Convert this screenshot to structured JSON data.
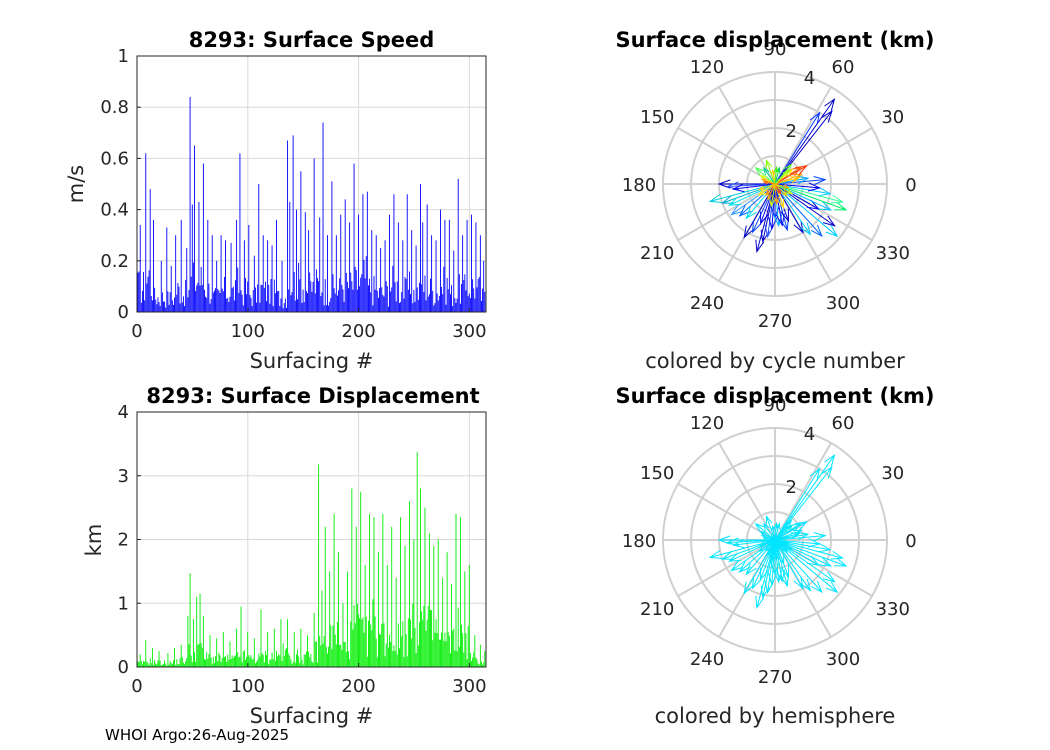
{
  "footer": "WHOI Argo:26-Aug-2025",
  "colors": {
    "speed_bars": "#0000ff",
    "displacement_bars": "#00ee00",
    "hemisphere_arrows": "#00e5ff"
  },
  "chart_data": [
    {
      "type": "bar",
      "title": "8293: Surface Speed",
      "xlabel": "Surfacing #",
      "ylabel": "m/s",
      "xlim": [
        0,
        315
      ],
      "ylim": [
        0,
        1
      ],
      "xticks": [
        "0",
        "100",
        "200",
        "300"
      ],
      "yticks": [
        "0",
        "0.2",
        "0.4",
        "0.6",
        "0.8",
        "1"
      ],
      "n_bars": 315,
      "peaks": [
        [
          3,
          0.34
        ],
        [
          8,
          0.62
        ],
        [
          12,
          0.48
        ],
        [
          15,
          0.36
        ],
        [
          22,
          0.2
        ],
        [
          27,
          0.33
        ],
        [
          31,
          0.18
        ],
        [
          35,
          0.3
        ],
        [
          40,
          0.36
        ],
        [
          45,
          0.25
        ],
        [
          48,
          0.84
        ],
        [
          50,
          0.42
        ],
        [
          52,
          0.65
        ],
        [
          56,
          0.43
        ],
        [
          60,
          0.58
        ],
        [
          64,
          0.36
        ],
        [
          68,
          0.3
        ],
        [
          72,
          0.2
        ],
        [
          76,
          0.3
        ],
        [
          80,
          0.28
        ],
        [
          85,
          0.27
        ],
        [
          90,
          0.36
        ],
        [
          93,
          0.62
        ],
        [
          97,
          0.28
        ],
        [
          101,
          0.34
        ],
        [
          106,
          0.22
        ],
        [
          110,
          0.5
        ],
        [
          114,
          0.3
        ],
        [
          118,
          0.28
        ],
        [
          122,
          0.26
        ],
        [
          126,
          0.36
        ],
        [
          131,
          0.2
        ],
        [
          136,
          0.67
        ],
        [
          138,
          0.43
        ],
        [
          141,
          0.69
        ],
        [
          144,
          0.4
        ],
        [
          148,
          0.55
        ],
        [
          152,
          0.39
        ],
        [
          155,
          0.32
        ],
        [
          160,
          0.6
        ],
        [
          165,
          0.37
        ],
        [
          168,
          0.74
        ],
        [
          172,
          0.3
        ],
        [
          176,
          0.51
        ],
        [
          180,
          0.3
        ],
        [
          184,
          0.38
        ],
        [
          188,
          0.44
        ],
        [
          192,
          0.35
        ],
        [
          196,
          0.58
        ],
        [
          200,
          0.38
        ],
        [
          204,
          0.46
        ],
        [
          208,
          0.47
        ],
        [
          212,
          0.32
        ],
        [
          216,
          0.3
        ],
        [
          220,
          0.25
        ],
        [
          224,
          0.28
        ],
        [
          228,
          0.38
        ],
        [
          232,
          0.46
        ],
        [
          236,
          0.35
        ],
        [
          240,
          0.28
        ],
        [
          244,
          0.46
        ],
        [
          248,
          0.32
        ],
        [
          252,
          0.26
        ],
        [
          256,
          0.5
        ],
        [
          258,
          0.35
        ],
        [
          262,
          0.42
        ],
        [
          266,
          0.3
        ],
        [
          270,
          0.28
        ],
        [
          274,
          0.4
        ],
        [
          278,
          0.36
        ],
        [
          282,
          0.36
        ],
        [
          286,
          0.24
        ],
        [
          290,
          0.52
        ],
        [
          294,
          0.3
        ],
        [
          298,
          0.36
        ],
        [
          302,
          0.38
        ],
        [
          306,
          0.35
        ],
        [
          310,
          0.3
        ],
        [
          313,
          0.2
        ]
      ]
    },
    {
      "type": "bar",
      "title": "8293: Surface Displacement",
      "xlabel": "Surfacing #",
      "ylabel": "km",
      "xlim": [
        0,
        315
      ],
      "ylim": [
        0,
        4
      ],
      "xticks": [
        "0",
        "100",
        "200",
        "300"
      ],
      "yticks": [
        "0",
        "1",
        "2",
        "3",
        "4"
      ],
      "n_bars": 315,
      "peaks": [
        [
          3,
          0.2
        ],
        [
          8,
          0.42
        ],
        [
          14,
          0.3
        ],
        [
          20,
          0.25
        ],
        [
          28,
          0.22
        ],
        [
          34,
          0.3
        ],
        [
          40,
          0.35
        ],
        [
          46,
          0.8
        ],
        [
          48,
          1.47
        ],
        [
          51,
          0.75
        ],
        [
          54,
          1.1
        ],
        [
          57,
          1.15
        ],
        [
          60,
          0.8
        ],
        [
          66,
          0.5
        ],
        [
          72,
          0.45
        ],
        [
          78,
          0.55
        ],
        [
          84,
          0.4
        ],
        [
          90,
          0.6
        ],
        [
          94,
          0.95
        ],
        [
          100,
          0.55
        ],
        [
          106,
          0.45
        ],
        [
          112,
          0.9
        ],
        [
          118,
          0.55
        ],
        [
          124,
          0.6
        ],
        [
          130,
          0.75
        ],
        [
          136,
          0.75
        ],
        [
          142,
          0.55
        ],
        [
          148,
          0.6
        ],
        [
          154,
          0.5
        ],
        [
          160,
          0.85
        ],
        [
          164,
          3.18
        ],
        [
          167,
          1.2
        ],
        [
          170,
          2.2
        ],
        [
          174,
          1.5
        ],
        [
          178,
          2.4
        ],
        [
          182,
          1.8
        ],
        [
          186,
          1.0
        ],
        [
          190,
          1.5
        ],
        [
          194,
          2.8
        ],
        [
          198,
          2.2
        ],
        [
          202,
          2.75
        ],
        [
          206,
          1.6
        ],
        [
          210,
          2.4
        ],
        [
          214,
          2.35
        ],
        [
          218,
          1.8
        ],
        [
          222,
          2.4
        ],
        [
          226,
          1.6
        ],
        [
          230,
          2.2
        ],
        [
          234,
          1.4
        ],
        [
          238,
          2.35
        ],
        [
          242,
          1.9
        ],
        [
          246,
          2.6
        ],
        [
          250,
          2.0
        ],
        [
          253,
          3.37
        ],
        [
          256,
          2.8
        ],
        [
          260,
          2.5
        ],
        [
          264,
          2.1
        ],
        [
          268,
          1.9
        ],
        [
          272,
          2.0
        ],
        [
          276,
          1.4
        ],
        [
          280,
          1.8
        ],
        [
          284,
          1.3
        ],
        [
          288,
          2.4
        ],
        [
          292,
          2.35
        ],
        [
          296,
          1.5
        ],
        [
          300,
          1.6
        ],
        [
          305,
          0.5
        ],
        [
          310,
          0.35
        ],
        [
          314,
          0.25
        ]
      ]
    },
    {
      "type": "polar",
      "title": "Surface displacement (km)",
      "caption": "colored by cycle number",
      "rmax": 4,
      "rticks": [
        "2",
        "4"
      ],
      "angle_labels": [
        "0",
        "30",
        "60",
        "90",
        "120",
        "150",
        "180",
        "210",
        "240",
        "270",
        "300",
        "330"
      ],
      "vectors": [
        [
          55,
          3.7,
          "#0000cc"
        ],
        [
          52,
          3.3,
          "#0000cc"
        ],
        [
          58,
          3.0,
          "#0033ff"
        ],
        [
          180,
          2.0,
          "#0000cc"
        ],
        [
          183,
          1.7,
          "#3355ff"
        ],
        [
          187,
          1.5,
          "#0000ee"
        ],
        [
          195,
          2.4,
          "#00ccdd"
        ],
        [
          200,
          2.0,
          "#00aacc"
        ],
        [
          205,
          1.8,
          "#00e5ee"
        ],
        [
          215,
          1.9,
          "#3399ff"
        ],
        [
          222,
          1.7,
          "#0066ff"
        ],
        [
          230,
          1.6,
          "#00ddee"
        ],
        [
          240,
          2.2,
          "#0000cc"
        ],
        [
          245,
          1.9,
          "#0044ff"
        ],
        [
          250,
          1.5,
          "#0000ee"
        ],
        [
          255,
          2.5,
          "#0000cc"
        ],
        [
          258,
          2.1,
          "#0000cc"
        ],
        [
          262,
          1.9,
          "#2255ff"
        ],
        [
          266,
          1.6,
          "#0000ee"
        ],
        [
          270,
          1.2,
          "#0033ff"
        ],
        [
          275,
          1.5,
          "#00aaff"
        ],
        [
          280,
          1.5,
          "#0000ee"
        ],
        [
          285,
          1.7,
          "#0044ff"
        ],
        [
          290,
          1.4,
          "#0000cc"
        ],
        [
          300,
          2.0,
          "#0000cc"
        ],
        [
          305,
          2.2,
          "#00ccff"
        ],
        [
          312,
          2.5,
          "#0066ff"
        ],
        [
          320,
          2.9,
          "#00ccff"
        ],
        [
          325,
          2.6,
          "#0000cc"
        ],
        [
          330,
          1.8,
          "#0000ee"
        ],
        [
          335,
          2.2,
          "#00bbff"
        ],
        [
          340,
          2.7,
          "#00ee66"
        ],
        [
          345,
          2.5,
          "#33ff99"
        ],
        [
          350,
          2.0,
          "#00ccff"
        ],
        [
          355,
          1.6,
          "#0000ee"
        ],
        [
          5,
          1.8,
          "#0044ff"
        ],
        [
          10,
          1.2,
          "#00aaff"
        ],
        [
          15,
          0.9,
          "#ffcc00"
        ],
        [
          20,
          1.0,
          "#ffaa00"
        ],
        [
          30,
          1.3,
          "#ff3300"
        ],
        [
          33,
          1.1,
          "#ff5500"
        ],
        [
          40,
          0.8,
          "#ffee00"
        ],
        [
          45,
          0.7,
          "#aaff00"
        ],
        [
          50,
          0.9,
          "#66ff33"
        ],
        [
          75,
          0.6,
          "#00cc66"
        ],
        [
          85,
          0.6,
          "#44ff00"
        ],
        [
          100,
          0.5,
          "#ffcc00"
        ],
        [
          110,
          0.9,
          "#88ff00"
        ],
        [
          125,
          0.7,
          "#00cc99"
        ],
        [
          140,
          0.9,
          "#44ff55"
        ],
        [
          150,
          0.6,
          "#ddff00"
        ],
        [
          160,
          0.5,
          "#ffaa00"
        ],
        [
          170,
          0.4,
          "#ff6600"
        ],
        [
          200,
          0.6,
          "#ffcc00"
        ],
        [
          215,
          0.7,
          "#ffee00"
        ],
        [
          230,
          0.5,
          "#ff8800"
        ],
        [
          245,
          0.6,
          "#ffaa00"
        ],
        [
          260,
          0.8,
          "#ccff00"
        ],
        [
          275,
          0.7,
          "#ff9900"
        ],
        [
          290,
          0.9,
          "#ffdd00"
        ],
        [
          300,
          0.4,
          "#ff3300"
        ],
        [
          315,
          0.6,
          "#ffcc00"
        ],
        [
          330,
          0.7,
          "#ccff00"
        ],
        [
          345,
          0.5,
          "#ffaa00"
        ]
      ]
    },
    {
      "type": "polar",
      "title": "Surface displacement (km)",
      "caption": "colored by hemisphere",
      "rmax": 4,
      "rticks": [
        "2",
        "4"
      ],
      "angle_labels": [
        "0",
        "30",
        "60",
        "90",
        "120",
        "150",
        "180",
        "210",
        "240",
        "270",
        "300",
        "330"
      ],
      "vectors": [
        [
          55,
          3.7,
          "#00e5ff"
        ],
        [
          52,
          3.3,
          "#00e5ff"
        ],
        [
          58,
          3.0,
          "#00e5ff"
        ],
        [
          180,
          2.0,
          "#00e5ff"
        ],
        [
          183,
          1.7,
          "#00e5ff"
        ],
        [
          187,
          1.5,
          "#00e5ff"
        ],
        [
          195,
          2.4,
          "#00e5ff"
        ],
        [
          200,
          2.0,
          "#00e5ff"
        ],
        [
          205,
          1.8,
          "#00e5ff"
        ],
        [
          215,
          1.9,
          "#00e5ff"
        ],
        [
          222,
          1.7,
          "#00e5ff"
        ],
        [
          230,
          1.6,
          "#00e5ff"
        ],
        [
          240,
          2.2,
          "#00e5ff"
        ],
        [
          245,
          1.9,
          "#00e5ff"
        ],
        [
          250,
          1.5,
          "#00e5ff"
        ],
        [
          255,
          2.5,
          "#00e5ff"
        ],
        [
          258,
          2.1,
          "#00e5ff"
        ],
        [
          262,
          1.9,
          "#00e5ff"
        ],
        [
          266,
          1.6,
          "#00e5ff"
        ],
        [
          270,
          1.2,
          "#00e5ff"
        ],
        [
          275,
          1.5,
          "#00e5ff"
        ],
        [
          280,
          1.5,
          "#00e5ff"
        ],
        [
          285,
          1.7,
          "#00e5ff"
        ],
        [
          290,
          1.4,
          "#00e5ff"
        ],
        [
          300,
          2.0,
          "#00e5ff"
        ],
        [
          305,
          2.2,
          "#00e5ff"
        ],
        [
          312,
          2.5,
          "#00e5ff"
        ],
        [
          320,
          2.9,
          "#00e5ff"
        ],
        [
          325,
          2.6,
          "#00e5ff"
        ],
        [
          330,
          1.8,
          "#00e5ff"
        ],
        [
          335,
          2.2,
          "#00e5ff"
        ],
        [
          340,
          2.7,
          "#00e5ff"
        ],
        [
          345,
          2.5,
          "#00e5ff"
        ],
        [
          350,
          2.0,
          "#00e5ff"
        ],
        [
          355,
          1.6,
          "#00e5ff"
        ],
        [
          5,
          1.8,
          "#00e5ff"
        ],
        [
          10,
          1.2,
          "#00e5ff"
        ],
        [
          15,
          0.9,
          "#00e5ff"
        ],
        [
          20,
          1.0,
          "#00e5ff"
        ],
        [
          30,
          1.3,
          "#00e5ff"
        ],
        [
          33,
          1.1,
          "#00e5ff"
        ],
        [
          40,
          0.8,
          "#00e5ff"
        ],
        [
          45,
          0.7,
          "#00e5ff"
        ],
        [
          50,
          0.9,
          "#00e5ff"
        ],
        [
          75,
          0.6,
          "#00e5ff"
        ],
        [
          85,
          0.6,
          "#00e5ff"
        ],
        [
          100,
          0.5,
          "#00e5ff"
        ],
        [
          110,
          0.9,
          "#00e5ff"
        ],
        [
          125,
          0.7,
          "#00e5ff"
        ],
        [
          140,
          0.9,
          "#00e5ff"
        ],
        [
          150,
          0.6,
          "#00e5ff"
        ],
        [
          160,
          0.5,
          "#00e5ff"
        ],
        [
          170,
          0.4,
          "#00e5ff"
        ],
        [
          200,
          0.6,
          "#00e5ff"
        ],
        [
          215,
          0.7,
          "#00e5ff"
        ],
        [
          230,
          0.5,
          "#00e5ff"
        ],
        [
          245,
          0.6,
          "#00e5ff"
        ],
        [
          260,
          0.8,
          "#00e5ff"
        ],
        [
          275,
          0.7,
          "#00e5ff"
        ],
        [
          290,
          0.9,
          "#00e5ff"
        ],
        [
          300,
          0.4,
          "#00e5ff"
        ],
        [
          315,
          0.6,
          "#00e5ff"
        ],
        [
          330,
          0.7,
          "#00e5ff"
        ],
        [
          345,
          0.5,
          "#00e5ff"
        ]
      ]
    }
  ]
}
